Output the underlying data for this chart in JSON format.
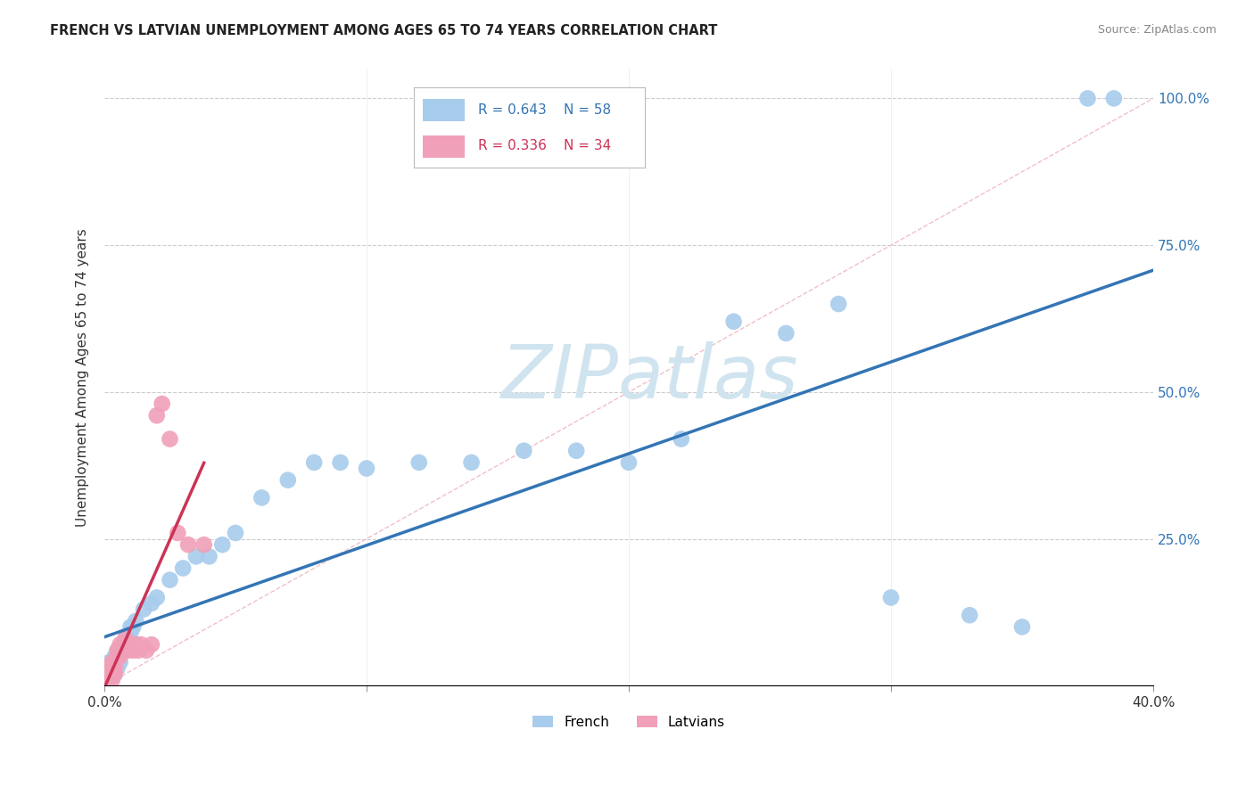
{
  "title": "FRENCH VS LATVIAN UNEMPLOYMENT AMONG AGES 65 TO 74 YEARS CORRELATION CHART",
  "source": "Source: ZipAtlas.com",
  "ylabel": "Unemployment Among Ages 65 to 74 years",
  "xlim": [
    0.0,
    0.4
  ],
  "ylim": [
    0.0,
    1.05
  ],
  "french_R": 0.643,
  "french_N": 58,
  "latvian_R": 0.336,
  "latvian_N": 34,
  "french_color": "#A8CCEC",
  "latvian_color": "#F0A0B8",
  "french_line_color": "#3375B5",
  "latvian_line_color": "#CC3355",
  "diagonal_color": "#F0C0C8",
  "grid_color": "#CCCCCC",
  "watermark_color": "#D0E4F0",
  "french_x": [
    0.001,
    0.001,
    0.002,
    0.002,
    0.002,
    0.002,
    0.002,
    0.003,
    0.003,
    0.003,
    0.003,
    0.004,
    0.004,
    0.004,
    0.004,
    0.005,
    0.005,
    0.005,
    0.005,
    0.006,
    0.006,
    0.007,
    0.007,
    0.008,
    0.008,
    0.009,
    0.01,
    0.01,
    0.011,
    0.012,
    0.015,
    0.018,
    0.02,
    0.025,
    0.03,
    0.035,
    0.04,
    0.045,
    0.05,
    0.06,
    0.07,
    0.08,
    0.09,
    0.1,
    0.12,
    0.14,
    0.16,
    0.18,
    0.2,
    0.22,
    0.24,
    0.26,
    0.28,
    0.3,
    0.33,
    0.35,
    0.375,
    0.385
  ],
  "french_y": [
    0.02,
    0.03,
    0.02,
    0.03,
    0.02,
    0.04,
    0.03,
    0.02,
    0.03,
    0.04,
    0.03,
    0.02,
    0.03,
    0.04,
    0.05,
    0.03,
    0.04,
    0.05,
    0.06,
    0.04,
    0.06,
    0.06,
    0.07,
    0.07,
    0.08,
    0.08,
    0.09,
    0.1,
    0.1,
    0.11,
    0.13,
    0.14,
    0.15,
    0.18,
    0.2,
    0.22,
    0.22,
    0.24,
    0.26,
    0.32,
    0.35,
    0.38,
    0.38,
    0.37,
    0.38,
    0.38,
    0.4,
    0.4,
    0.38,
    0.42,
    0.62,
    0.6,
    0.65,
    0.15,
    0.12,
    0.1,
    1.0,
    1.0
  ],
  "latvian_x": [
    0.001,
    0.001,
    0.002,
    0.002,
    0.002,
    0.003,
    0.003,
    0.003,
    0.003,
    0.004,
    0.004,
    0.004,
    0.005,
    0.005,
    0.006,
    0.006,
    0.007,
    0.007,
    0.008,
    0.008,
    0.009,
    0.01,
    0.011,
    0.012,
    0.013,
    0.014,
    0.016,
    0.018,
    0.02,
    0.022,
    0.025,
    0.028,
    0.032,
    0.038
  ],
  "latvian_y": [
    0.02,
    0.03,
    0.01,
    0.02,
    0.03,
    0.01,
    0.02,
    0.03,
    0.04,
    0.02,
    0.03,
    0.04,
    0.05,
    0.06,
    0.05,
    0.07,
    0.06,
    0.07,
    0.06,
    0.08,
    0.06,
    0.07,
    0.06,
    0.07,
    0.06,
    0.07,
    0.06,
    0.07,
    0.46,
    0.48,
    0.42,
    0.26,
    0.24,
    0.24
  ],
  "french_line_x0": 0.0,
  "french_line_x1": 0.4,
  "latvian_line_x0": 0.0,
  "latvian_line_x1": 0.038
}
